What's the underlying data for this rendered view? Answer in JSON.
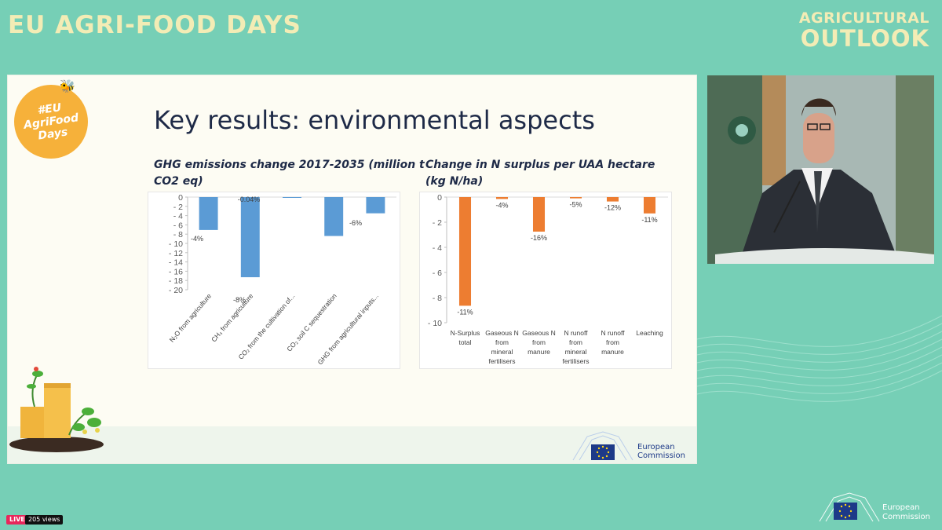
{
  "header": {
    "event_title": "EU AGRI-FOOD DAYS",
    "outlook_line1": "AGRICULTURAL",
    "outlook_line2": "OUTLOOK"
  },
  "badge": {
    "line1": "#EU",
    "line2": "AgriFood",
    "line3": "Days"
  },
  "slide": {
    "title": "Key results: environmental aspects",
    "chart1_title_line1": "GHG emissions change 2017-2035 (million t",
    "chart1_title_line2": "CO2 eq)",
    "chart2_title_line1": "Change in N surplus per UAA hectare",
    "chart2_title_line2": "(kg N/ha)"
  },
  "chart_data": [
    {
      "type": "bar",
      "title": "GHG emissions change 2017-2035 (million t CO2 eq)",
      "categories": [
        "N₂O from agriculture",
        "CH₄ from agriculture",
        "CO₂ from the cultivation of...",
        "CO₂ soil C sequestration",
        "GHG from agricultural inputs..."
      ],
      "values": [
        -7.1,
        -17.3,
        -0.04,
        -8.4,
        -3.5
      ],
      "data_labels": [
        "-4%",
        "-8%",
        "-0.04%",
        "",
        "-6%"
      ],
      "ylim": [
        -20,
        0
      ],
      "yticks": [
        "0",
        "- 2",
        "- 4",
        "- 6",
        "- 8",
        "- 10",
        "- 12",
        "- 14",
        "- 16",
        "- 18",
        "- 20"
      ],
      "color": "#5b9bd5",
      "grid": false
    },
    {
      "type": "bar",
      "title": "Change in N surplus per UAA hectare (kg N/ha)",
      "categories": [
        "N-Surplus total",
        "Gaseous N from mineral fertilisers",
        "Gaseous N from manure",
        "N runoff from mineral fertilisers",
        "N runoff from manure",
        "Leaching"
      ],
      "values": [
        -8.65,
        -0.15,
        -2.75,
        -0.1,
        -0.35,
        -1.3
      ],
      "data_labels": [
        "-11%",
        "-4%",
        "-16%",
        "-5%",
        "-12%",
        "-11%"
      ],
      "ylim": [
        -10,
        0
      ],
      "yticks": [
        "0",
        "- 2",
        "- 4",
        "- 6",
        "- 8",
        "- 10"
      ],
      "color": "#ed7d31",
      "grid": false
    }
  ],
  "footer": {
    "ec_line1": "European",
    "ec_line2": "Commission",
    "live_label": "LIVE",
    "views_label": "205 views"
  },
  "colors": {
    "background": "#76cfb6",
    "title_yellow": "#f3ecb5",
    "slide_bg": "#fdfcf3",
    "badge_orange": "#f6b13a"
  }
}
